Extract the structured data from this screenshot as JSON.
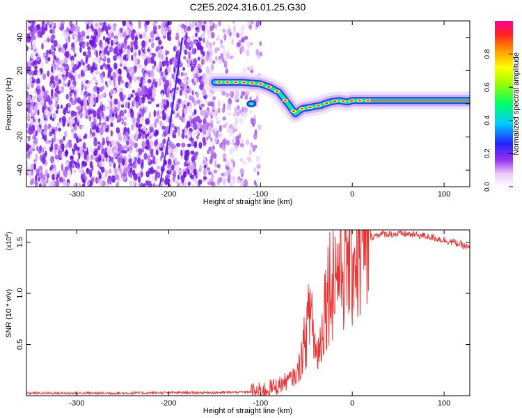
{
  "title": "C2E5.2024.316.01.25.G30",
  "chart_data": [
    {
      "type": "heatmap",
      "xlabel": "Height of straight line (km)",
      "ylabel": "Frequency (Hz)",
      "xlim": [
        -355,
        128
      ],
      "ylim": [
        -50,
        50
      ],
      "xticks": [
        -300,
        -200,
        -100,
        0,
        100
      ],
      "yticks": [
        -40,
        -20,
        0,
        20,
        40
      ],
      "colorbar": {
        "label": "Normalized spectral amplitude",
        "range": [
          0,
          1
        ],
        "ticks": [
          0.0,
          0.2,
          0.4,
          0.6,
          0.8
        ],
        "tick_labels": [
          "0.0",
          "0.2",
          "0.4",
          "0.6",
          "0.8"
        ]
      },
      "signal_trace": {
        "x": [
          -150,
          -120,
          -100,
          -90,
          -80,
          -70,
          -62,
          -55,
          -45,
          -35,
          -25,
          -15,
          -5,
          0,
          20,
          60,
          100,
          128
        ],
        "y": [
          13,
          13,
          12,
          10,
          7,
          0,
          -6,
          -3,
          -2,
          -1,
          1,
          2,
          1,
          2,
          2,
          2,
          2,
          2
        ]
      }
    },
    {
      "type": "line",
      "xlabel": "Height of straight line (km)",
      "ylabel": "SNR (10 * v/v)",
      "y_multiplier": "(x10",
      "y_multiplier_exp": "4",
      "y_multiplier_close": ")",
      "xlim": [
        -355,
        128
      ],
      "ylim": [
        0,
        16200
      ],
      "xticks": [
        -300,
        -200,
        -100,
        0,
        100
      ],
      "yticks": [
        5000,
        10000,
        15000
      ],
      "ytick_labels": [
        "0.5",
        "1.0",
        "1.5"
      ],
      "color": "#ee3333",
      "series": [
        {
          "x": [
            -355,
            -300,
            -250,
            -200,
            -150,
            -120,
            -100,
            -90,
            -80,
            -70,
            -60,
            -55,
            -50,
            -45,
            -40,
            -35,
            -30,
            -25,
            -20,
            -15,
            -10,
            -5,
            0,
            10,
            20,
            30,
            40,
            50,
            60,
            70,
            80,
            90,
            100,
            110,
            120,
            128
          ],
          "y": [
            250,
            250,
            250,
            300,
            300,
            350,
            400,
            700,
            1000,
            1500,
            2000,
            4000,
            6000,
            9000,
            4000,
            5000,
            9000,
            11000,
            12000,
            12500,
            13000,
            13500,
            13800,
            14500,
            15500,
            15800,
            15800,
            15800,
            15800,
            15700,
            15600,
            15400,
            15200,
            15000,
            14700,
            14400
          ]
        }
      ]
    }
  ]
}
